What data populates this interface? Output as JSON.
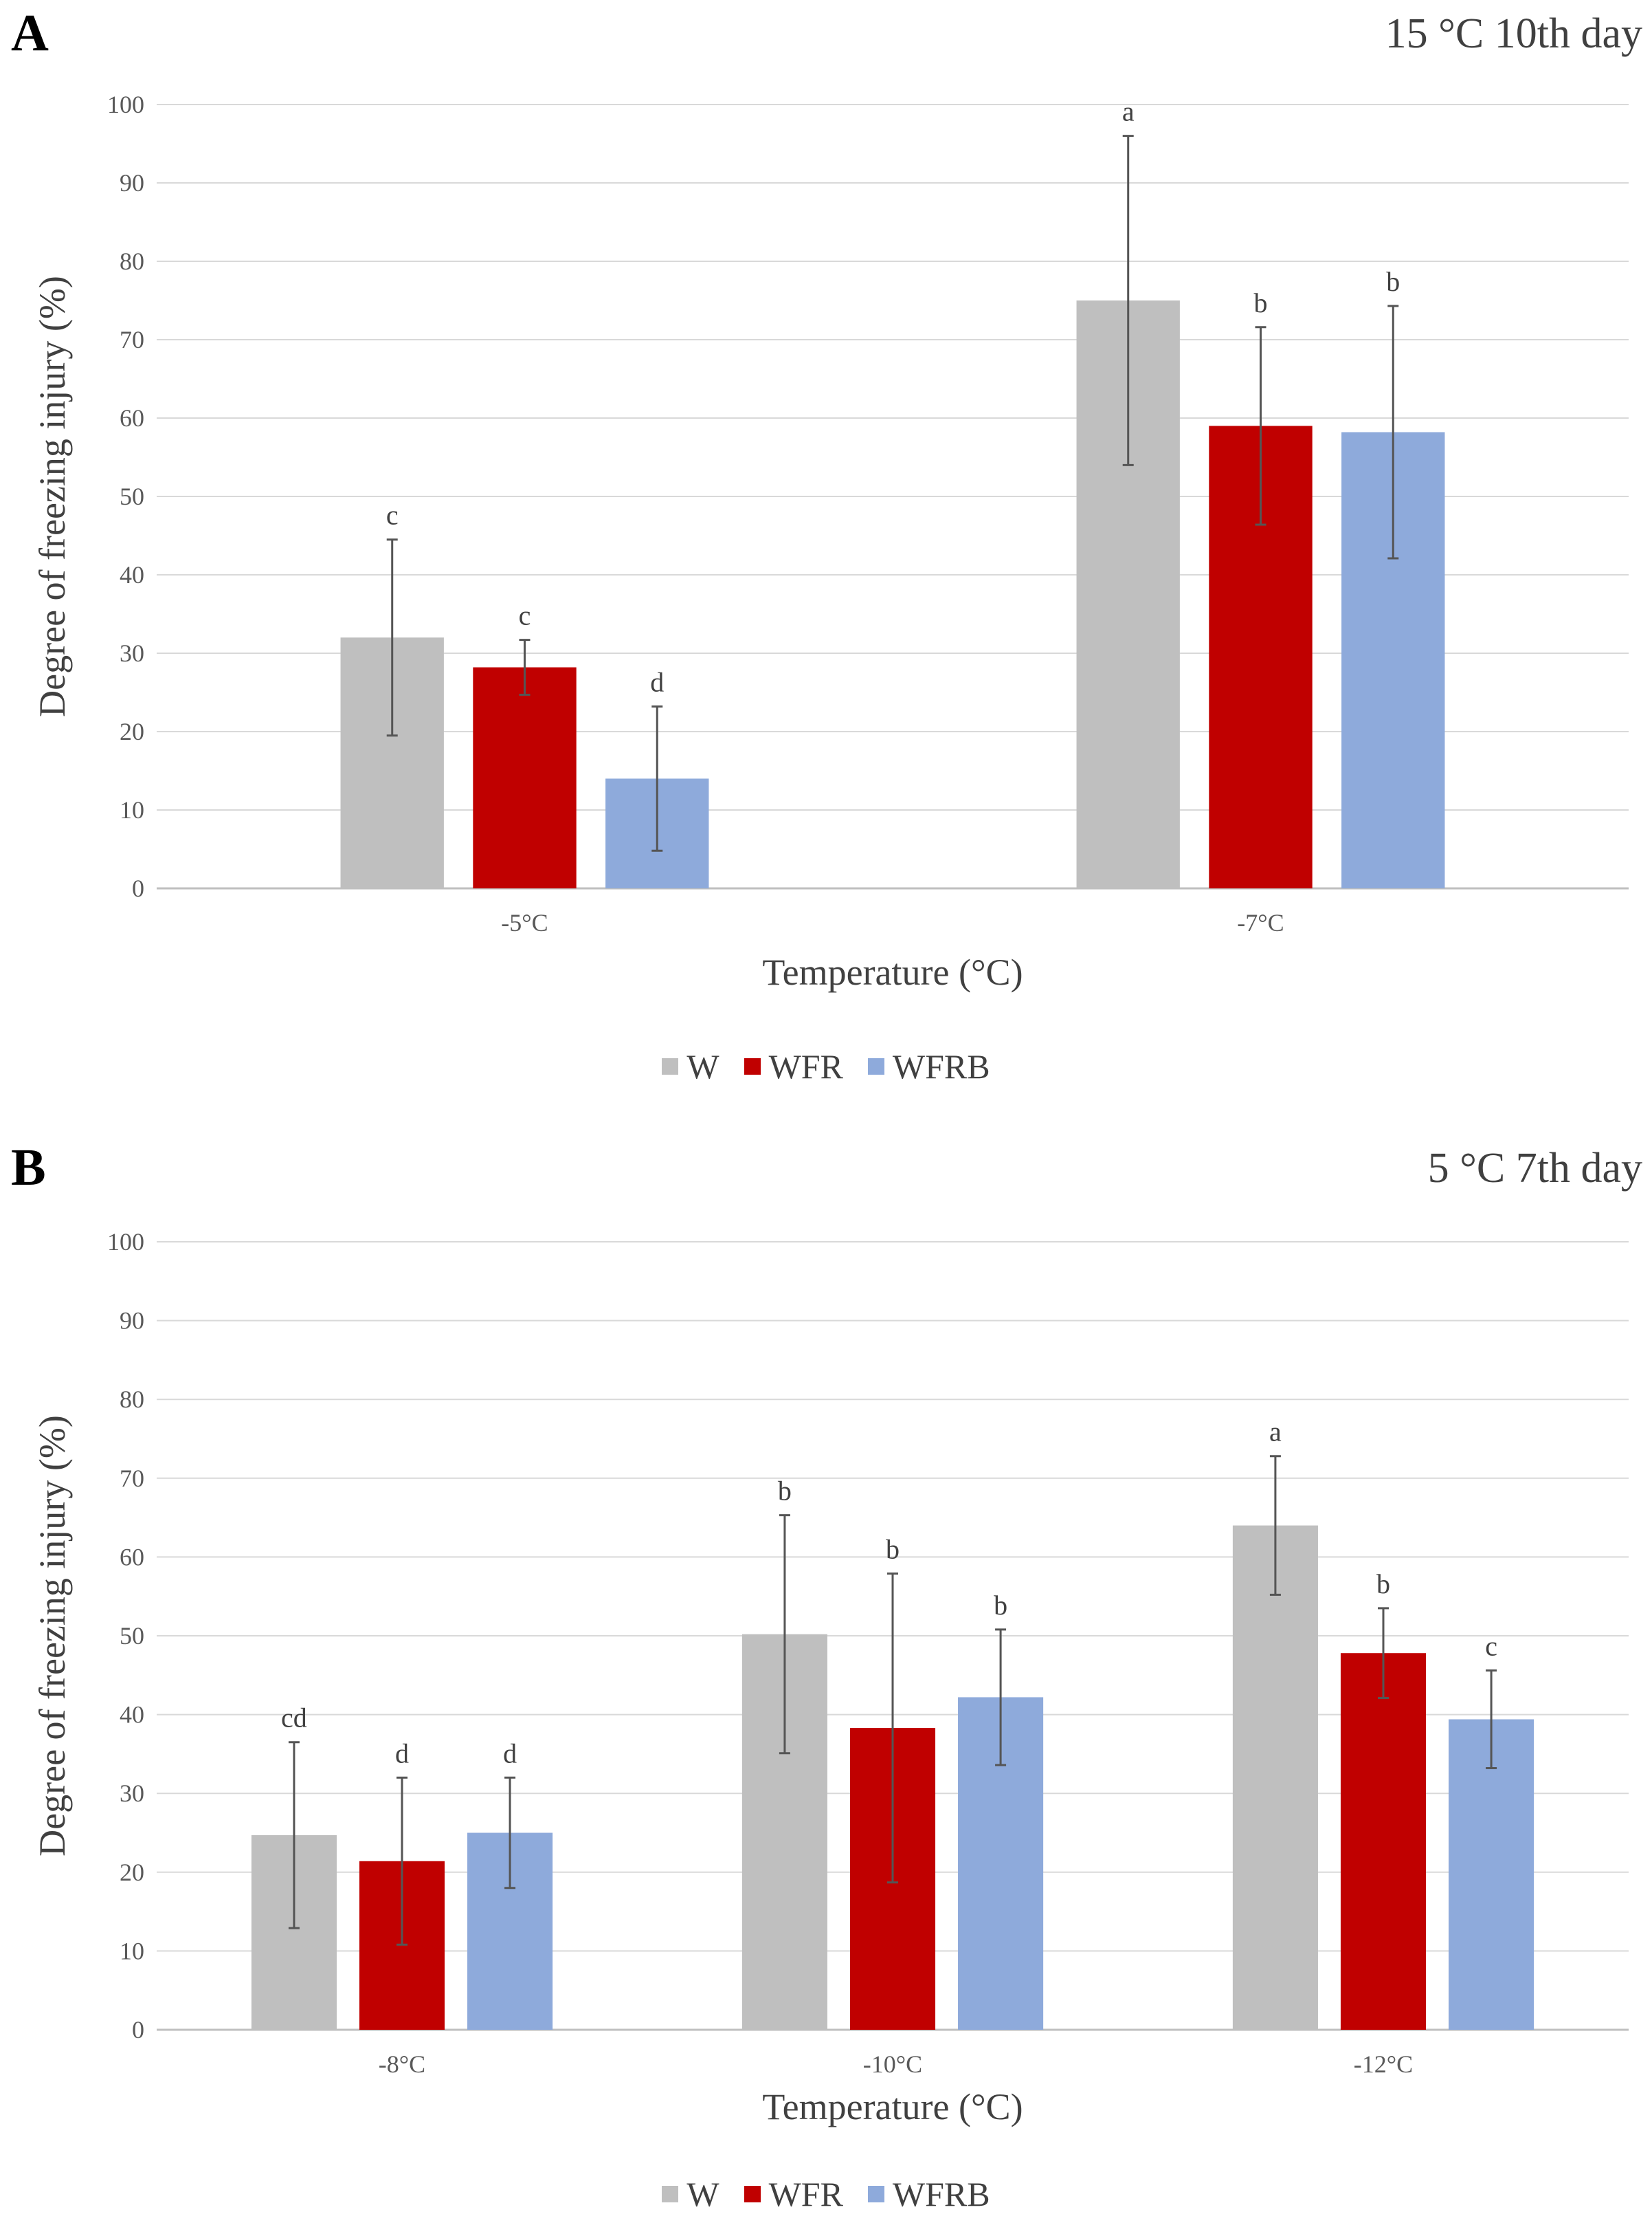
{
  "chart_data": [
    {
      "panel_label": "A",
      "title": "15 °C 10th day",
      "type": "bar",
      "xlabel": "Temperature (°C)",
      "ylabel": "Degree of freezing injury (%)",
      "ylim": [
        0,
        100
      ],
      "yticks": [
        "0",
        "10",
        "20",
        "30",
        "40",
        "50",
        "60",
        "70",
        "80",
        "90",
        "100"
      ],
      "grid": true,
      "legend_position": "bottom",
      "categories": [
        "-5°C",
        "-7°C"
      ],
      "series": [
        {
          "name": "W",
          "color": "#bfbfbf",
          "values": [
            32,
            75
          ],
          "errors": [
            12.5,
            21
          ],
          "letters": [
            "c",
            "a"
          ]
        },
        {
          "name": "WFR",
          "color": "#c00000",
          "values": [
            28.2,
            59
          ],
          "errors": [
            3.5,
            12.6
          ],
          "letters": [
            "c",
            "b"
          ]
        },
        {
          "name": "WFRB",
          "color": "#8eaadb",
          "values": [
            14,
            58.2
          ],
          "errors": [
            9.2,
            16.1
          ],
          "letters": [
            "d",
            "b"
          ]
        }
      ]
    },
    {
      "panel_label": "B",
      "title": "5 °C 7th day",
      "type": "bar",
      "xlabel": "Temperature (°C)",
      "ylabel": "Degree of freezing injury (%)",
      "ylim": [
        0,
        100
      ],
      "yticks": [
        "0",
        "10",
        "20",
        "30",
        "40",
        "50",
        "60",
        "70",
        "80",
        "90",
        "100"
      ],
      "grid": true,
      "legend_position": "bottom",
      "categories": [
        "-8°C",
        "-10°C",
        "-12°C"
      ],
      "series": [
        {
          "name": "W",
          "color": "#bfbfbf",
          "values": [
            24.7,
            50.2,
            64
          ],
          "errors": [
            11.8,
            15.1,
            8.8
          ],
          "letters": [
            "cd",
            "b",
            "a"
          ]
        },
        {
          "name": "WFR",
          "color": "#c00000",
          "values": [
            21.4,
            38.3,
            47.8
          ],
          "errors": [
            10.6,
            19.6,
            5.7
          ],
          "letters": [
            "d",
            "b",
            "b"
          ]
        },
        {
          "name": "WFRB",
          "color": "#8eaadb",
          "values": [
            25,
            42.2,
            39.4
          ],
          "errors": [
            7,
            8.6,
            6.2
          ],
          "letters": [
            "d",
            "b",
            "c"
          ]
        }
      ]
    }
  ]
}
